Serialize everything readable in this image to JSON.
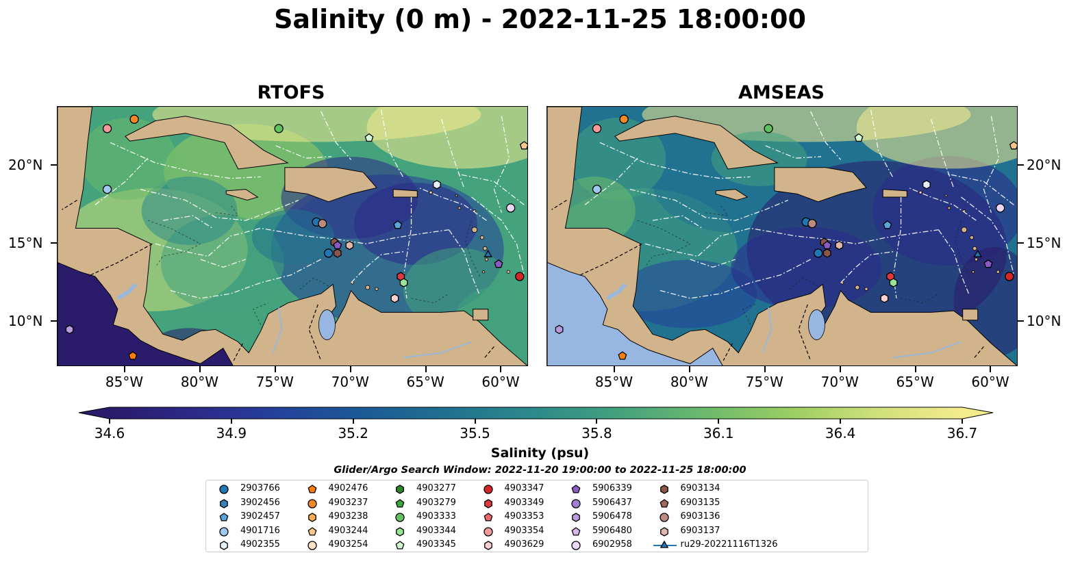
{
  "title": "Salinity (0 m) - 2022-11-25 18:00:00",
  "panels": [
    {
      "title": "RTOFS",
      "ocean_style": "rtofs"
    },
    {
      "title": "AMSEAS",
      "ocean_style": "amseas"
    }
  ],
  "longitude_ticks": [
    "85°W",
    "80°W",
    "75°W",
    "70°W",
    "65°W",
    "60°W"
  ],
  "latitude_ticks": [
    "20°N",
    "15°N",
    "10°N"
  ],
  "colorbar": {
    "label": "Salinity (psu)",
    "min": 34.6,
    "max": 36.7,
    "ticks": [
      "34.6",
      "34.9",
      "35.2",
      "35.5",
      "35.8",
      "36.1",
      "36.4",
      "36.7"
    ],
    "colors": [
      "#2a1b6b",
      "#2c2a8a",
      "#24429a",
      "#1b5b96",
      "#207290",
      "#2e8a8a",
      "#44a27d",
      "#6cba6c",
      "#9bce63",
      "#cfe07a",
      "#f4eb8e"
    ],
    "land_color": "#d2b48c",
    "shallow_water_color": "#97b6e1"
  },
  "search_window": "Glider/Argo Search Window: 2022-11-20 19:00:00 to 2022-11-25 18:00:00",
  "legend": [
    {
      "label": "2903766",
      "marker": "circle",
      "color": "#1f77b4"
    },
    {
      "label": "3902456",
      "marker": "hexagon",
      "color": "#3a7fb8"
    },
    {
      "label": "3902457",
      "marker": "pentagon",
      "color": "#5aa5dc"
    },
    {
      "label": "4901716",
      "marker": "circle",
      "color": "#9ec8ee"
    },
    {
      "label": "4902355",
      "marker": "hexagon",
      "color": "#e4f1fc"
    },
    {
      "label": "4902476",
      "marker": "pentagon",
      "color": "#ff7f0e"
    },
    {
      "label": "4903237",
      "marker": "circle",
      "color": "#f5892a"
    },
    {
      "label": "4903238",
      "marker": "hexagon",
      "color": "#f9ad58"
    },
    {
      "label": "4903244",
      "marker": "pentagon",
      "color": "#fcc58a"
    },
    {
      "label": "4903254",
      "marker": "circle",
      "color": "#fde2c5"
    },
    {
      "label": "4903277",
      "marker": "hexagon",
      "color": "#2a8a2a"
    },
    {
      "label": "4903279",
      "marker": "pentagon",
      "color": "#3fa43f"
    },
    {
      "label": "4903333",
      "marker": "circle",
      "color": "#5fc45f"
    },
    {
      "label": "4903344",
      "marker": "hexagon",
      "color": "#98e498"
    },
    {
      "label": "4903345",
      "marker": "pentagon",
      "color": "#d2f7d2"
    },
    {
      "label": "4903347",
      "marker": "circle",
      "color": "#d62728"
    },
    {
      "label": "4903349",
      "marker": "hexagon",
      "color": "#e0393d"
    },
    {
      "label": "4903353",
      "marker": "pentagon",
      "color": "#ee6a6c"
    },
    {
      "label": "4903354",
      "marker": "circle",
      "color": "#f49a9a"
    },
    {
      "label": "4903629",
      "marker": "hexagon",
      "color": "#fcd1d0"
    },
    {
      "label": "5906339",
      "marker": "pentagon",
      "color": "#8a5cc2"
    },
    {
      "label": "5906437",
      "marker": "circle",
      "color": "#a07ed0"
    },
    {
      "label": "5906478",
      "marker": "hexagon",
      "color": "#b99ae0"
    },
    {
      "label": "5906480",
      "marker": "pentagon",
      "color": "#d4b8f0"
    },
    {
      "label": "6902958",
      "marker": "circle",
      "color": "#ecd6fa"
    },
    {
      "label": "6903134",
      "marker": "hexagon",
      "color": "#8c564b"
    },
    {
      "label": "6903135",
      "marker": "pentagon",
      "color": "#a0695e"
    },
    {
      "label": "6903136",
      "marker": "circle",
      "color": "#bc8a7e"
    },
    {
      "label": "6903137",
      "marker": "hexagon",
      "color": "#e0b8ab"
    },
    {
      "label": "ru29-20221116T1326",
      "marker": "triangle-line",
      "color": "#1f77b4"
    }
  ]
}
